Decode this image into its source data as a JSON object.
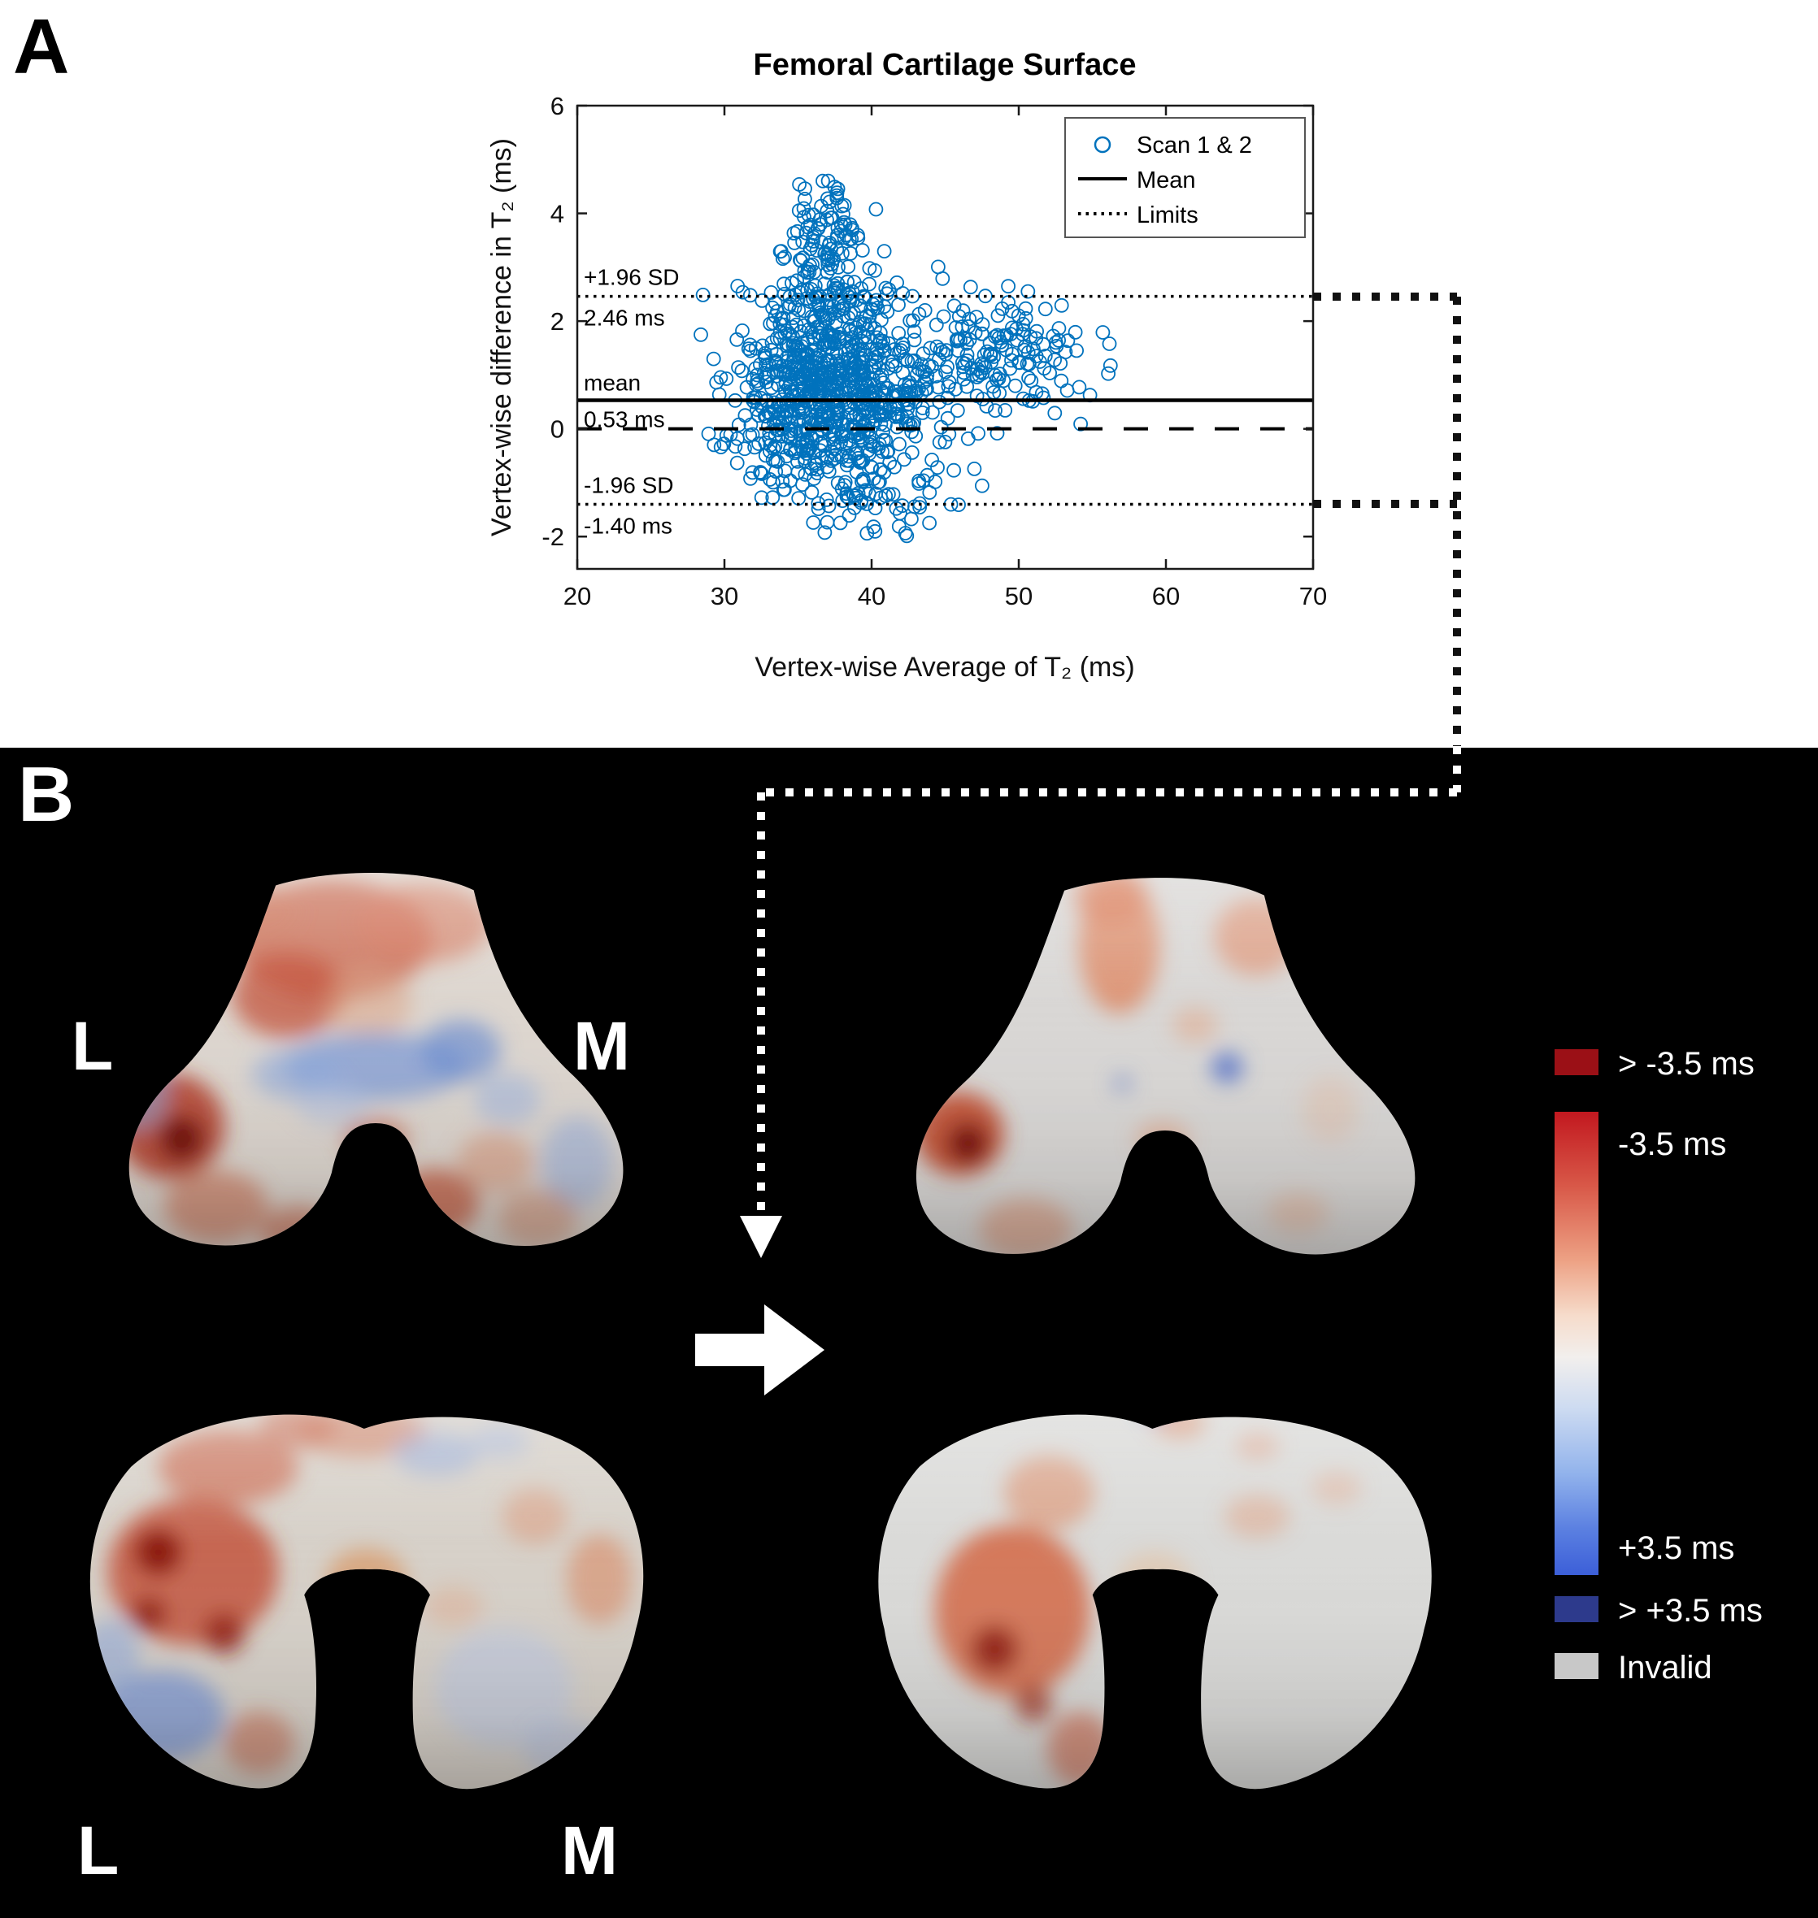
{
  "figure": {
    "panel_a_label": "A",
    "panel_b_label": "B"
  },
  "chart_data": {
    "type": "scatter",
    "title": "Femoral Cartilage Surface",
    "xlabel": "Vertex-wise Average of T₂ (ms)",
    "ylabel": "Vertex-wise difference in T₂ (ms)",
    "xlim": [
      20,
      70
    ],
    "ylim": [
      -2.6,
      6
    ],
    "xticks": [
      20,
      30,
      40,
      50,
      60,
      70
    ],
    "yticks": [
      -2,
      0,
      2,
      4,
      6
    ],
    "legend": [
      {
        "label": "Scan 1 & 2",
        "marker": "circle"
      },
      {
        "label": "Mean",
        "marker": "solid-line"
      },
      {
        "label": "Limits",
        "marker": "dotted-line"
      }
    ],
    "lines": {
      "mean": 0.53,
      "upper_limit": 2.46,
      "lower_limit": -1.4,
      "zero": 0
    },
    "annotations": {
      "upper_sd_label": "+1.96 SD",
      "upper_value_label": "2.46 ms",
      "mean_label": "mean",
      "mean_value_label": "0.53 ms",
      "lower_sd_label": "-1.96 SD",
      "lower_value_label": "-1.40 ms"
    },
    "marker_color": "#0072BD",
    "scatter_generator": {
      "seed": 42,
      "clusters": [
        {
          "n": 800,
          "cx": 37,
          "sx": 3.4,
          "cy": 0.7,
          "sy": 0.9
        },
        {
          "n": 130,
          "cx": 37,
          "sx": 1.6,
          "cy": 2.7,
          "sy": 0.8
        },
        {
          "n": 40,
          "cx": 37.5,
          "sx": 1.2,
          "cy": 4.0,
          "sy": 0.45
        },
        {
          "n": 170,
          "cx": 48.5,
          "sx": 3.5,
          "cy": 1.3,
          "sy": 0.6
        },
        {
          "n": 60,
          "cx": 40,
          "sx": 3.0,
          "cy": -1.2,
          "sy": 0.45
        }
      ],
      "clip_x": [
        27.8,
        57.5
      ],
      "clip_y": [
        -2.05,
        4.75
      ]
    }
  },
  "panel_b": {
    "orientation_labels": {
      "top_left": "L",
      "top_right": "M",
      "bottom_left": "L",
      "bottom_right": "M"
    },
    "colorbar": {
      "over_neg_label": "> -3.5 ms",
      "neg_label": "-3.5 ms",
      "pos_label": "+3.5 ms",
      "over_pos_label": "> +3.5 ms",
      "invalid_label": "Invalid",
      "over_neg_color": "#9b1016",
      "over_pos_color": "#2d3a8c",
      "invalid_color": "#c8c8c8",
      "gradient": [
        "#c2181f 0%",
        "#d85848 16%",
        "#eda184 32%",
        "#f6dccb 44%",
        "#f2efed 53%",
        "#cddbf1 64%",
        "#92b3ec 78%",
        "#5b80e1 90%",
        "#3c5fd8 100%"
      ]
    }
  }
}
